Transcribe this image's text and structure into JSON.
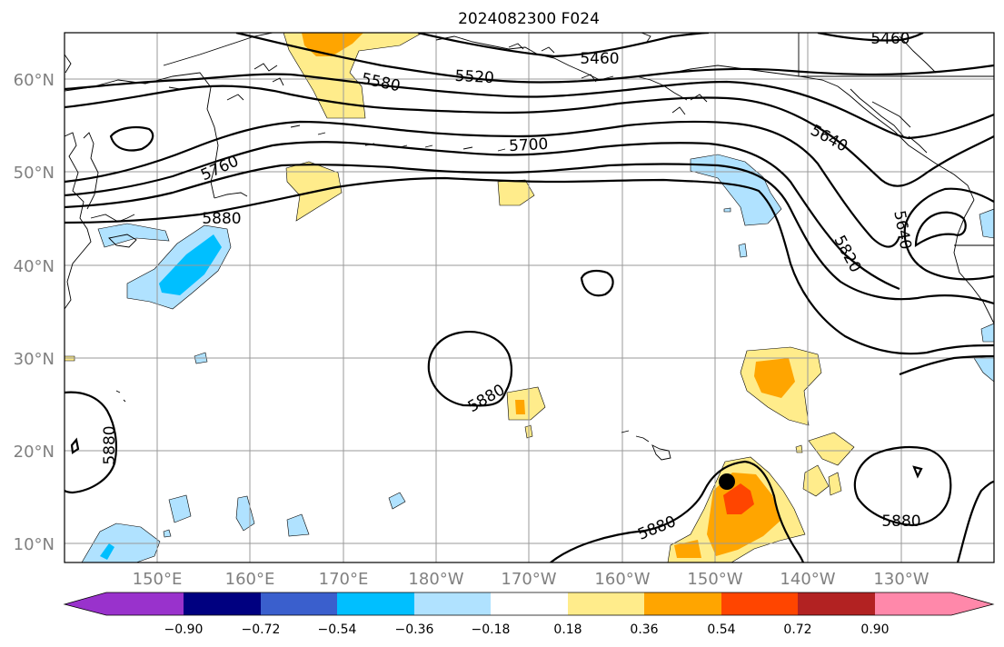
{
  "title": "2024082300 F024",
  "lat_labels": [
    "60°N",
    "50°N",
    "40°N",
    "30°N",
    "20°N",
    "10°N"
  ],
  "lon_labels": [
    "150°E",
    "160°E",
    "170°E",
    "180°W",
    "170°W",
    "160°W",
    "150°W",
    "140°W",
    "130°W"
  ],
  "contour_labels": [
    "5460",
    "5460",
    "5520",
    "5580",
    "5640",
    "5640",
    "5700",
    "5760",
    "5820",
    "5880",
    "5880",
    "5880",
    "5880",
    "5880"
  ],
  "colorbar": {
    "ticks": [
      "−0.90",
      "−0.72",
      "−0.54",
      "−0.36",
      "−0.18",
      "0.18",
      "0.36",
      "0.54",
      "0.72",
      "0.90"
    ],
    "colors": [
      "#9932cc",
      "#000080",
      "#3a5fcd",
      "#00bfff",
      "#b0e2ff",
      "#ffffff",
      "#ffec8b",
      "#ffa500",
      "#ff4500",
      "#b22222",
      "#ff88aa"
    ]
  },
  "anomaly_colors": {
    "weak_positive": "#ffec8b",
    "moderate_positive": "#ffa500",
    "strong_positive": "#ff4500",
    "weak_negative": "#b0e2ff",
    "moderate_negative": "#00bfff"
  },
  "marker_color": "#000000"
}
